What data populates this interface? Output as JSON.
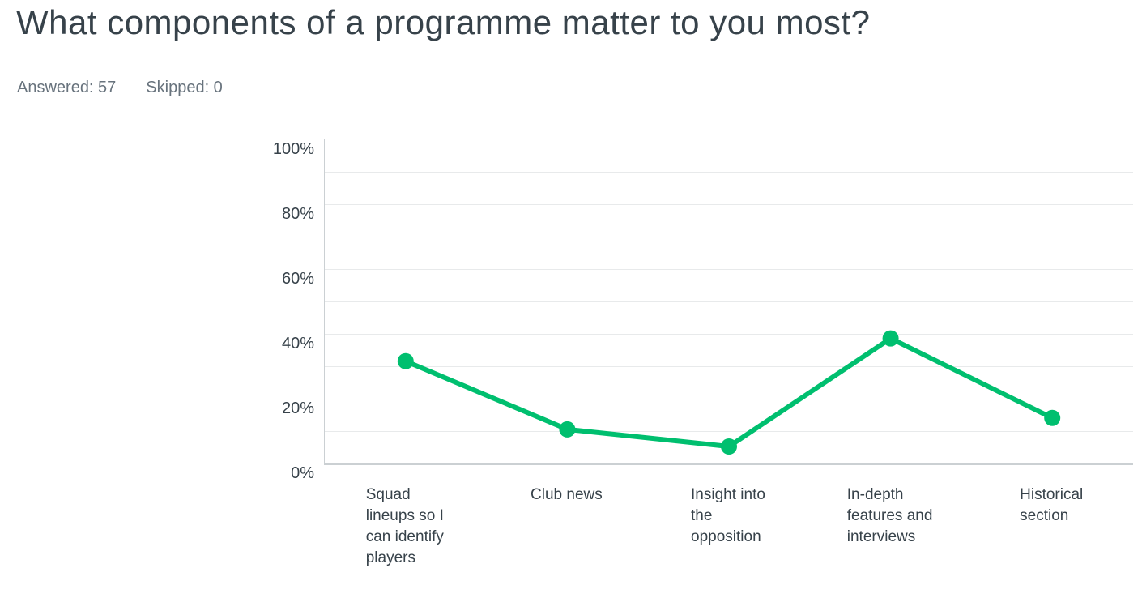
{
  "header": {
    "title": "What components of a programme matter to you most?",
    "answered": "Answered: 57",
    "skipped": "Skipped: 0"
  },
  "colors": {
    "accent_green": "#00BF6F",
    "title_text": "#37424A",
    "muted_text": "#68737D",
    "axis_line": "#CBD0D3",
    "gridline": "#E8EAEB"
  },
  "chart_data": {
    "type": "line",
    "title": "What components of a programme matter to you most?",
    "categories": [
      "Squad lineups so I can identify players",
      "Club news",
      "Insight into the opposition",
      "In-depth features and interviews",
      "Historical section"
    ],
    "category_display_lines": [
      "Squad\nlineups so I\ncan identify\nplayers",
      "Club news",
      "Insight into\nthe\nopposition",
      "In-depth\nfeatures and\ninterviews",
      "Historical\nsection"
    ],
    "values": [
      31.58,
      10.53,
      5.26,
      38.6,
      14.04
    ],
    "unit": "%",
    "xlabel": "",
    "ylabel": "",
    "ylim": [
      0,
      100
    ],
    "ytick_step": 20,
    "gridline_step": 10,
    "ytick_labels": [
      "100%",
      "80%",
      "60%",
      "40%",
      "20%",
      "0%"
    ],
    "grid": true,
    "legend": false,
    "line_color": "#00BF6F",
    "marker": "circle",
    "marker_radius": 10,
    "line_width": 6
  }
}
